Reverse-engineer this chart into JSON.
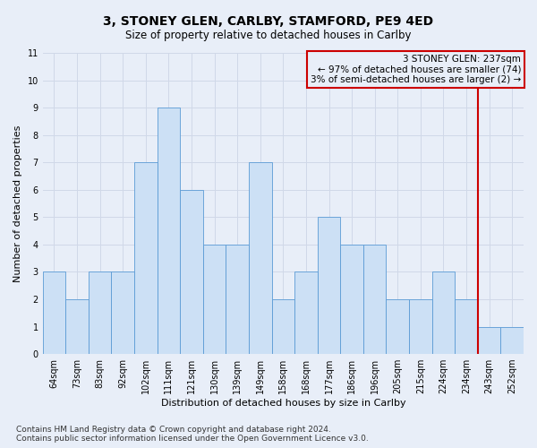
{
  "title": "3, STONEY GLEN, CARLBY, STAMFORD, PE9 4ED",
  "subtitle": "Size of property relative to detached houses in Carlby",
  "xlabel": "Distribution of detached houses by size in Carlby",
  "ylabel": "Number of detached properties",
  "bar_color": "#cce0f5",
  "bar_edge_color": "#5b9bd5",
  "categories": [
    "64sqm",
    "73sqm",
    "83sqm",
    "92sqm",
    "102sqm",
    "111sqm",
    "121sqm",
    "130sqm",
    "139sqm",
    "149sqm",
    "158sqm",
    "168sqm",
    "177sqm",
    "186sqm",
    "196sqm",
    "205sqm",
    "215sqm",
    "224sqm",
    "234sqm",
    "243sqm",
    "252sqm"
  ],
  "values": [
    3,
    2,
    3,
    3,
    7,
    9,
    6,
    4,
    4,
    7,
    2,
    3,
    5,
    4,
    4,
    2,
    2,
    3,
    2,
    1,
    1
  ],
  "ylim": [
    0,
    11
  ],
  "yticks": [
    0,
    1,
    2,
    3,
    4,
    5,
    6,
    7,
    8,
    9,
    10,
    11
  ],
  "vline_x": 18.5,
  "vline_color": "#cc0000",
  "annotation_text": "3 STONEY GLEN: 237sqm\n← 97% of detached houses are smaller (74)\n3% of semi-detached houses are larger (2) →",
  "annotation_box_color": "#cc0000",
  "footnote": "Contains HM Land Registry data © Crown copyright and database right 2024.\nContains public sector information licensed under the Open Government Licence v3.0.",
  "background_color": "#e8eef8",
  "grid_color": "#d0d8e8",
  "title_fontsize": 10,
  "subtitle_fontsize": 8.5,
  "ylabel_fontsize": 8,
  "xlabel_fontsize": 8,
  "tick_fontsize": 7,
  "footnote_fontsize": 6.5
}
